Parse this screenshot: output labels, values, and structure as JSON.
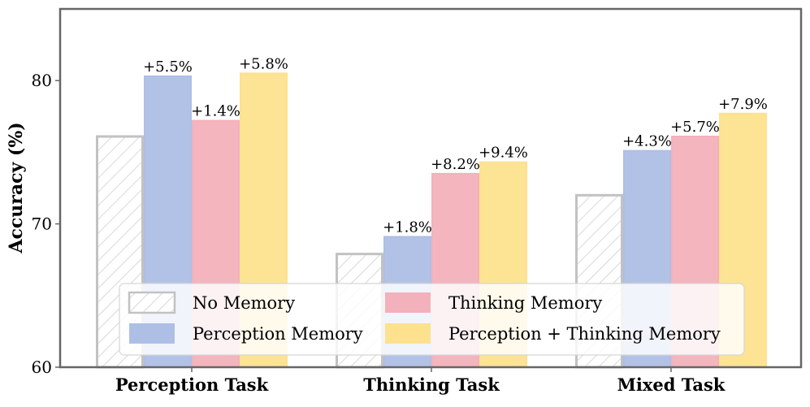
{
  "chart_data": {
    "type": "bar",
    "ylabel": "Accuracy (%)",
    "xlabel": "",
    "ylim": [
      60,
      85
    ],
    "yticks": [
      60,
      70,
      80
    ],
    "grid": false,
    "legend_position": "bottom-center",
    "categories": [
      "Perception Task",
      "Thinking Task",
      "Mixed Task"
    ],
    "series": [
      {
        "name": "No Memory",
        "values": [
          76.1,
          67.9,
          72.0
        ],
        "labels": [
          "",
          "",
          ""
        ],
        "color": "#c8c8c8",
        "style": "hatched"
      },
      {
        "name": "Perception Memory",
        "values": [
          80.3,
          69.1,
          75.1
        ],
        "labels": [
          "+5.5%",
          "+1.8%",
          "+4.3%"
        ],
        "color": "#aebfe6",
        "style": "solid"
      },
      {
        "name": "Thinking Memory",
        "values": [
          77.2,
          73.5,
          76.1
        ],
        "labels": [
          "+1.4%",
          "+8.2%",
          "+5.7%"
        ],
        "color": "#f3b1bb",
        "style": "solid"
      },
      {
        "name": "Perception + Thinking Memory",
        "values": [
          80.5,
          74.3,
          77.7
        ],
        "labels": [
          "+5.8%",
          "+9.4%",
          "+7.9%"
        ],
        "color": "#fde18e",
        "style": "solid"
      }
    ]
  }
}
